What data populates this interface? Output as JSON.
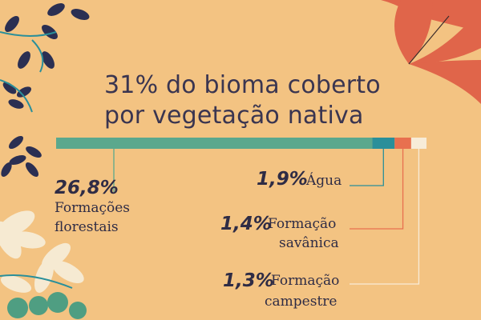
{
  "chart_data": {
    "type": "bar",
    "title_line1": "31% do bioma coberto",
    "title_line2": "por vegetação nativa",
    "categories": [
      {
        "value_label": "26,8%",
        "label_line1": "Formações",
        "label_line2": "florestais",
        "value": 26.8,
        "color": "#5ba88d"
      },
      {
        "value_label": "1,9%",
        "label_line1": "Água",
        "label_line2": "",
        "value": 1.9,
        "color": "#2a8f9a"
      },
      {
        "value_label": "1,4%",
        "label_line1": "Formação",
        "label_line2": "savânica",
        "value": 1.4,
        "color": "#e8704f"
      },
      {
        "value_label": "1,3%",
        "label_line1": "Formação",
        "label_line2": "campestre",
        "value": 1.3,
        "color": "#f7ecd8"
      }
    ],
    "total": 31.4
  }
}
